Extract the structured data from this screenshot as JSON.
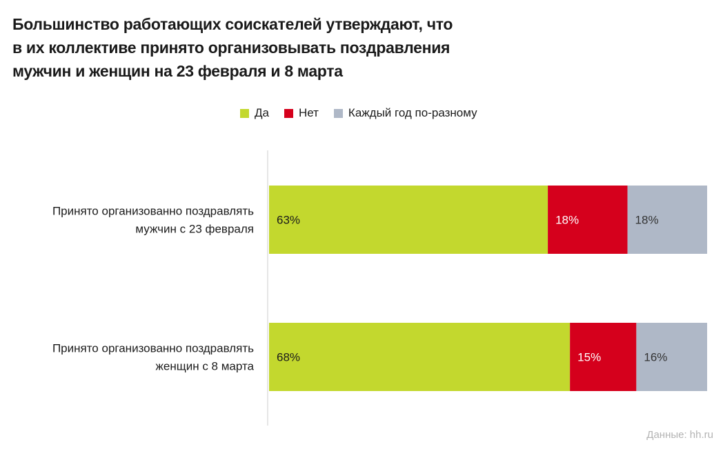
{
  "title_lines": [
    "Большинство работающих соискателей утверждают, что",
    "в их коллективе принято организовывать поздравления",
    "мужчин и женщин на 23 февраля и 8 марта"
  ],
  "source": "Данные: hh.ru",
  "chart_data": {
    "type": "bar",
    "orientation": "horizontal",
    "stacked": true,
    "title": "Большинство работающих соискателей утверждают, что в их коллективе принято организовывать поздравления мужчин и женщин на 23 февраля и 8 марта",
    "categories": [
      [
        "Принято организованно поздравлять",
        "мужчин с 23 февраля"
      ],
      [
        "Принято организованно поздравлять",
        "женщин с 8 марта"
      ]
    ],
    "series": [
      {
        "name": "Да",
        "color": "#c3d82e",
        "label_color": "#1a1a1a",
        "values": [
          63,
          68
        ]
      },
      {
        "name": "Нет",
        "color": "#d5001c",
        "label_color": "#ffffff",
        "values": [
          18,
          15
        ]
      },
      {
        "name": "Каждый год по-разному",
        "color": "#afb8c7",
        "label_color": "#333333",
        "values": [
          18,
          16
        ]
      }
    ],
    "value_suffix": "%",
    "legend": "top",
    "grid": false
  }
}
